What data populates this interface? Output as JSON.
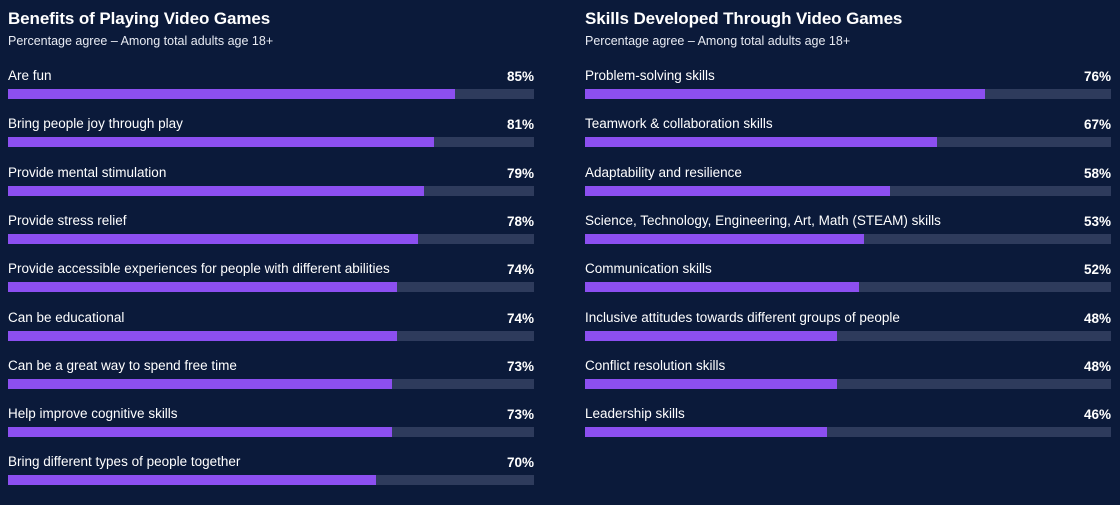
{
  "colors": {
    "background": "#0b1a3a",
    "bar_fill": "#8c4ff0",
    "bar_track": "#2e3b5c",
    "text": "#ffffff"
  },
  "chart_data": [
    {
      "type": "bar",
      "orientation": "horizontal",
      "title": "Benefits of Playing Video Games",
      "subtitle": "Percentage agree – Among total adults age 18+",
      "xlim": [
        0,
        100
      ],
      "categories": [
        "Are fun",
        "Bring people joy through play",
        "Provide mental stimulation",
        "Provide stress relief",
        "Provide accessible experiences for people with different abilities",
        "Can be educational",
        "Can be a great way to spend free time",
        "Help improve cognitive skills",
        "Bring different types of people together"
      ],
      "values": [
        85,
        81,
        79,
        78,
        74,
        74,
        73,
        73,
        70
      ],
      "value_labels": [
        "85%",
        "81%",
        "79%",
        "78%",
        "74%",
        "74%",
        "73%",
        "73%",
        "70%"
      ]
    },
    {
      "type": "bar",
      "orientation": "horizontal",
      "title": "Skills Developed Through Video Games",
      "subtitle": "Percentage agree – Among total adults age 18+",
      "xlim": [
        0,
        100
      ],
      "categories": [
        "Problem-solving skills",
        "Teamwork & collaboration skills",
        "Adaptability and resilience",
        "Science, Technology, Engineering, Art, Math (STEAM) skills",
        "Communication skills",
        "Inclusive attitudes towards different groups of people",
        "Conflict resolution skills",
        "Leadership skills"
      ],
      "values": [
        76,
        67,
        58,
        53,
        52,
        48,
        48,
        46
      ],
      "value_labels": [
        "76%",
        "67%",
        "58%",
        "53%",
        "52%",
        "48%",
        "48%",
        "46%"
      ]
    }
  ]
}
